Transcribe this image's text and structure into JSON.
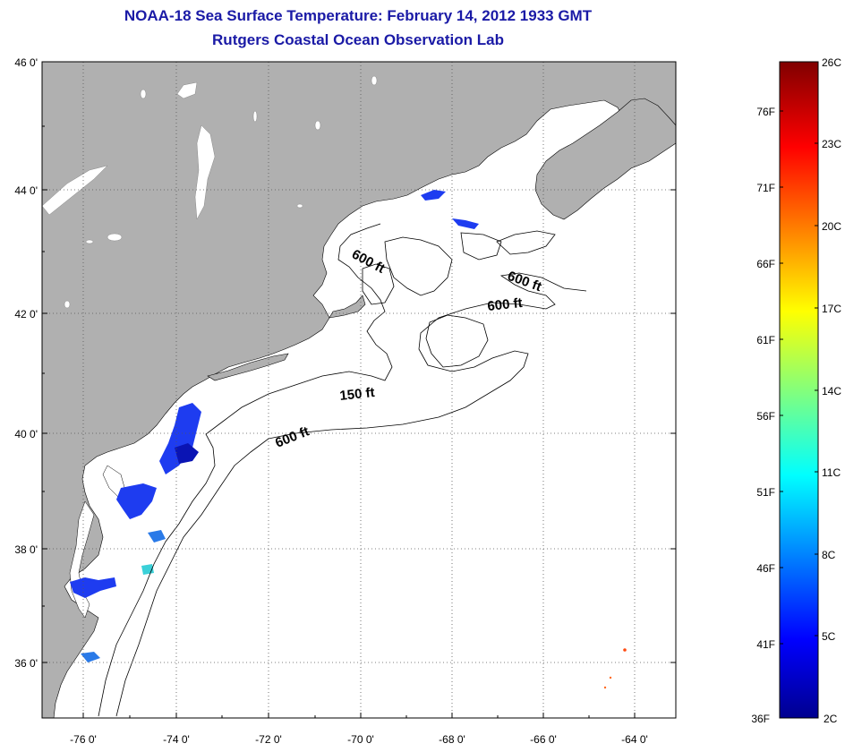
{
  "title": "NOAA-18 Sea Surface Temperature:  February 14, 2012 1933 GMT",
  "subtitle": "Rutgers Coastal Ocean Observation Lab",
  "colors": {
    "land": "#b0b0b0",
    "water": "#ffffff",
    "sst_cold": "#1e3cf0",
    "sst_dark": "#0a14b4",
    "accent_title": "#1a1aa6"
  },
  "map": {
    "lon_ticks": [
      "-76 0'",
      "-74 0'",
      "-72 0'",
      "-70 0'",
      "-68 0'",
      "-66 0'",
      "-64 0'"
    ],
    "lat_ticks": [
      "46 0'",
      "44 0'",
      "42 0'",
      "40 0'",
      "38 0'",
      "36 0'"
    ],
    "grid": "dotted",
    "contour_labels": [
      "600 ft",
      "600 ft",
      "600 ft",
      "150 ft",
      "600 ft"
    ]
  },
  "colorbar": {
    "celsius_labels": [
      "26C",
      "23C",
      "20C",
      "17C",
      "14C",
      "11C",
      "8C",
      "5C",
      "2C"
    ],
    "fahrenheit_labels": [
      "76F",
      "71F",
      "66F",
      "61F",
      "56F",
      "51F",
      "46F",
      "41F",
      "36F"
    ]
  }
}
